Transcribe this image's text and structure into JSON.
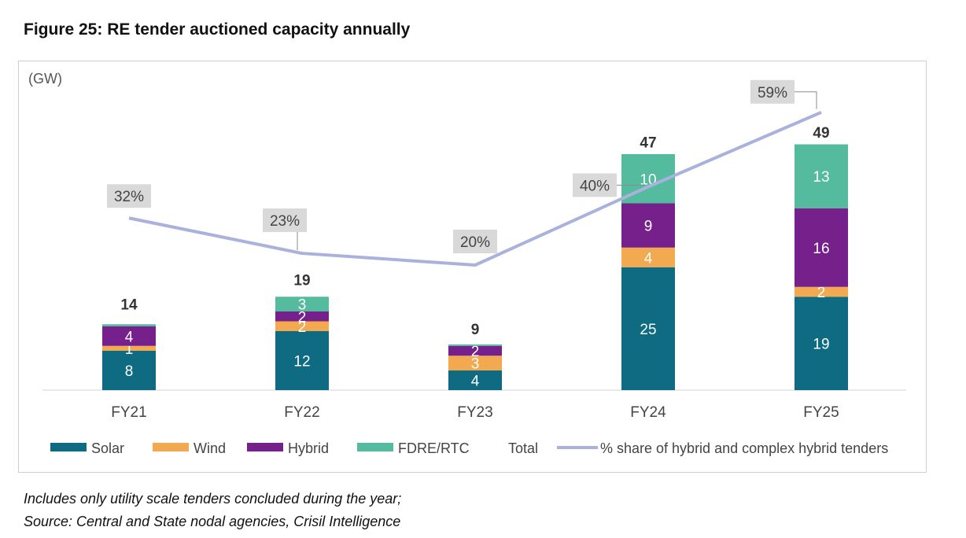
{
  "figure": {
    "title": "Figure 25: RE tender auctioned capacity annually",
    "footnote": "Includes only utility scale tenders concluded during the year;",
    "source": "Source: Central and State nodal agencies, Crisil Intelligence"
  },
  "colors": {
    "solar": "#0e6b82",
    "wind": "#f2a94f",
    "hybrid": "#75208b",
    "fdre": "#55bb9e",
    "line": "#a9b1dc",
    "label_box": "#d9d9d9"
  },
  "chart_data": {
    "type": "bar",
    "stacked": true,
    "unit_label": "(GW)",
    "categories": [
      "FY21",
      "FY22",
      "FY23",
      "FY24",
      "FY25"
    ],
    "series": [
      {
        "name": "Solar",
        "key": "solar",
        "values": [
          8,
          12,
          4,
          25,
          19
        ],
        "labels": [
          "8",
          "12",
          "4",
          "25",
          "19"
        ]
      },
      {
        "name": "Wind",
        "key": "wind",
        "values": [
          1,
          2,
          3,
          4,
          2
        ],
        "labels": [
          "1",
          "2",
          "3",
          "4",
          "2"
        ]
      },
      {
        "name": "Hybrid",
        "key": "hybrid",
        "values": [
          4,
          2,
          2,
          9,
          16
        ],
        "labels": [
          "4",
          "2",
          "2",
          "9",
          "16"
        ]
      },
      {
        "name": "FDRE/RTC",
        "key": "fdre",
        "values": [
          0.4,
          3,
          0.3,
          10,
          13
        ],
        "labels": [
          "",
          "3",
          "",
          "10",
          "13"
        ]
      }
    ],
    "totals": {
      "name": "Total",
      "values": [
        14,
        19,
        9,
        47,
        49
      ],
      "labels": [
        "14",
        "19",
        "9",
        "47",
        "49"
      ]
    },
    "line": {
      "name": "% share of hybrid and complex hybrid tenders",
      "values": [
        32,
        23,
        20,
        40,
        59
      ],
      "labels": [
        "32%",
        "23%",
        "20%",
        "40%",
        "59%"
      ],
      "ylim": [
        -30,
        70
      ]
    },
    "ylim": [
      0,
      60
    ],
    "legend_position": "bottom"
  }
}
